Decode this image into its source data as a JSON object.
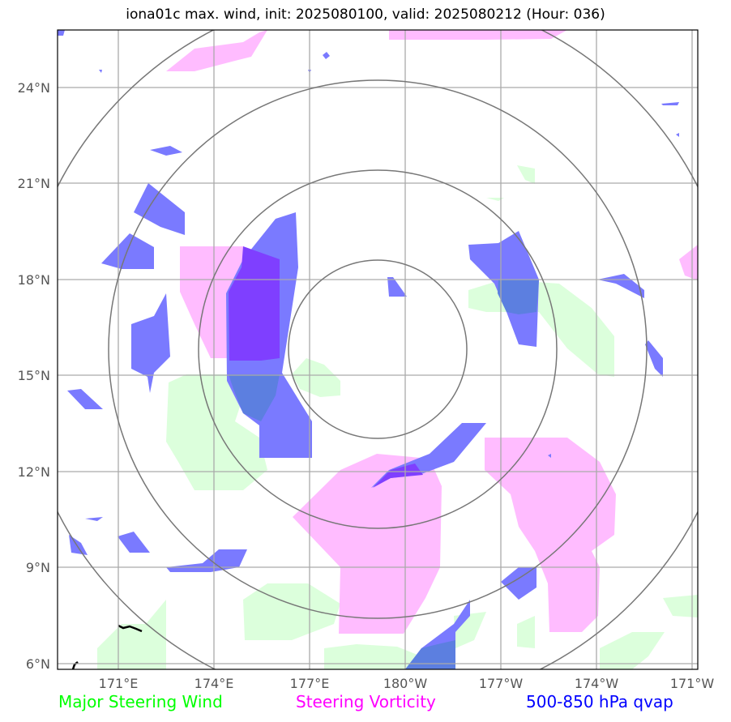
{
  "title": "iona01c max. wind, init: 2025080100, valid: 2025080212 (Hour: 036)",
  "lat_labels": [
    "24°N",
    "21°N",
    "18°N",
    "15°N",
    "12°N",
    "9°N",
    "6°N"
  ],
  "lon_labels": [
    "171°E",
    "174°E",
    "177°E",
    "180°W",
    "177°W",
    "174°W",
    "171°W"
  ],
  "legend": {
    "steering_wind": {
      "label": "Major Steering Wind",
      "color": "#00ff00"
    },
    "steering_vorticity": {
      "label": "Steering Vorticity",
      "color": "#ff00ff"
    },
    "qvap": {
      "label": "500-850 hPa qvap",
      "color": "#0000ff"
    }
  },
  "colors": {
    "green_fill": "#dcffdc",
    "magenta_fill": "#ffbcff",
    "blue_fill": "#7a7aff",
    "overlap_purple": "#7f3fff",
    "overlap_teal": "#5c7fe0",
    "grid": "#aaaaaa",
    "rings": "#777777"
  }
}
